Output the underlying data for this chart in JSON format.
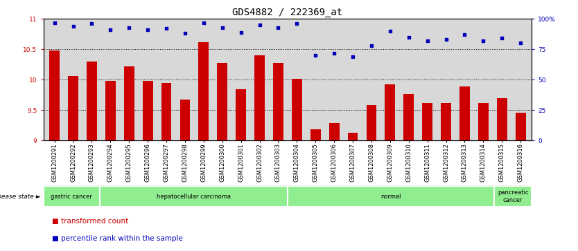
{
  "title": "GDS4882 / 222369_at",
  "samples": [
    "GSM1200291",
    "GSM1200292",
    "GSM1200293",
    "GSM1200294",
    "GSM1200295",
    "GSM1200296",
    "GSM1200297",
    "GSM1200298",
    "GSM1200299",
    "GSM1200300",
    "GSM1200301",
    "GSM1200302",
    "GSM1200303",
    "GSM1200304",
    "GSM1200305",
    "GSM1200306",
    "GSM1200307",
    "GSM1200308",
    "GSM1200309",
    "GSM1200310",
    "GSM1200311",
    "GSM1200312",
    "GSM1200313",
    "GSM1200314",
    "GSM1200315",
    "GSM1200316"
  ],
  "transformed_count": [
    10.48,
    10.06,
    10.3,
    9.98,
    10.22,
    9.98,
    9.95,
    9.67,
    10.62,
    10.28,
    9.84,
    10.4,
    10.28,
    10.01,
    9.19,
    9.29,
    9.13,
    9.58,
    9.92,
    9.76,
    9.62,
    9.62,
    9.89,
    9.62,
    9.7,
    9.46
  ],
  "percentile_rank": [
    97,
    94,
    96,
    91,
    93,
    91,
    92,
    88,
    97,
    93,
    89,
    95,
    93,
    96,
    70,
    72,
    69,
    78,
    90,
    85,
    82,
    83,
    87,
    82,
    84,
    80
  ],
  "disease_groups": [
    {
      "label": "gastric cancer",
      "start": 0,
      "end": 3
    },
    {
      "label": "hepatocellular carcinoma",
      "start": 3,
      "end": 13
    },
    {
      "label": "normal",
      "start": 13,
      "end": 24
    },
    {
      "label": "pancreatic\ncancer",
      "start": 24,
      "end": 26
    }
  ],
  "bar_color": "#CC0000",
  "dot_color": "#0000BB",
  "ylim_left": [
    9.0,
    11.0
  ],
  "ylim_right": [
    0,
    100
  ],
  "yticks_left": [
    9.0,
    9.5,
    10.0,
    10.5,
    11.0
  ],
  "ytick_labels_left": [
    "9",
    "9.5",
    "10",
    "10.5",
    "11"
  ],
  "yticks_right": [
    0,
    25,
    50,
    75,
    100
  ],
  "ytick_labels_right": [
    "0",
    "25",
    "50",
    "75",
    "100%"
  ],
  "bg_color": "#D8D8D8",
  "plot_bg_color": "#D8D8D8",
  "group_color": "#90EE90",
  "title_fontsize": 10,
  "tick_fontsize": 6.5,
  "label_fontsize": 7.5
}
